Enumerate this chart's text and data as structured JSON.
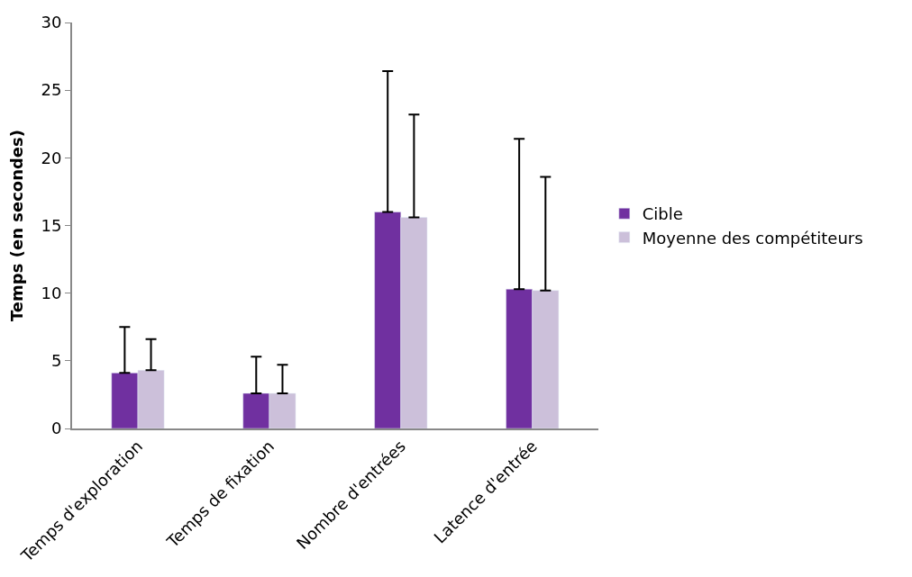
{
  "chart_data": {
    "type": "bar",
    "ylabel": "Temps (en secondes)",
    "categories": [
      "Temps d'exploration",
      "Temps de fixation",
      "Nombre d'entrées",
      "Latence d'entrée"
    ],
    "series": [
      {
        "name": "Cible",
        "color": "#7030a0",
        "values": [
          4.1,
          2.6,
          16.0,
          10.3
        ],
        "errors": [
          3.4,
          2.7,
          10.4,
          11.1
        ]
      },
      {
        "name": "Moyenne des compétiteurs",
        "color": "#ccc0da",
        "values": [
          4.3,
          2.6,
          15.6,
          10.2
        ],
        "errors": [
          2.3,
          2.1,
          7.6,
          8.4
        ]
      }
    ],
    "ylim": [
      0,
      30
    ],
    "yticks": [
      0,
      5,
      10,
      15,
      20,
      25,
      30
    ],
    "legend": "right"
  }
}
